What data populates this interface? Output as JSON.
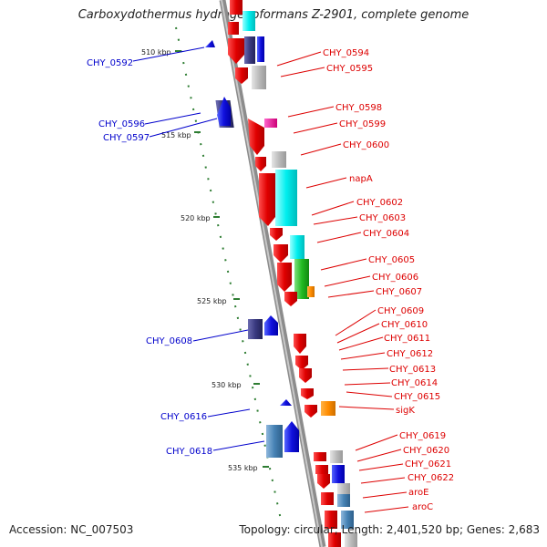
{
  "title": "Carboxydothermus hydrogenoformans Z-2901, complete genome",
  "accession": "Accession: NC_007503",
  "summary": "Topology: circular; Length: 2,401,520 bp; Genes: 2,683",
  "colors": {
    "backbone": "#8c8c8c",
    "forward_label": "#0000cc",
    "reverse_label": "#dd0000",
    "tick_dot": "#2e7d32"
  },
  "scale_ticks": [
    "510 kbp",
    "515 kbp",
    "520 kbp",
    "525 kbp",
    "530 kbp",
    "535 kbp"
  ],
  "forward_genes": [
    "CHY_0592",
    "CHY_0596",
    "CHY_0597",
    "CHY_0608",
    "CHY_0616",
    "CHY_0618"
  ],
  "reverse_genes": [
    "CHY_0594",
    "CHY_0595",
    "CHY_0598",
    "CHY_0599",
    "CHY_0600",
    "napA",
    "CHY_0602",
    "CHY_0603",
    "CHY_0604",
    "CHY_0605",
    "CHY_0606",
    "CHY_0607",
    "CHY_0609",
    "CHY_0610",
    "CHY_0611",
    "CHY_0612",
    "CHY_0613",
    "CHY_0614",
    "CHY_0615",
    "sigK",
    "CHY_0619",
    "CHY_0620",
    "CHY_0621",
    "CHY_0622",
    "aroE",
    "aroC"
  ]
}
